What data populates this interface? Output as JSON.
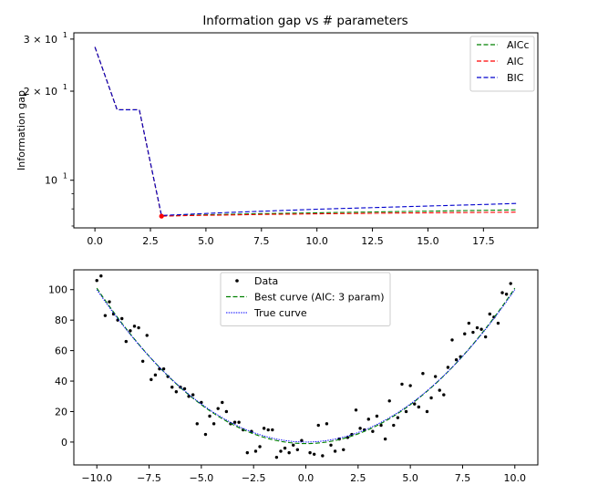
{
  "chart_data": [
    {
      "type": "line",
      "title": "Information gap vs # parameters",
      "xlabel": "",
      "ylabel": "Information gap",
      "yscale": "log",
      "xlim": [
        -0.95,
        19.95
      ],
      "ylim": [
        6.9,
        31.5
      ],
      "xticks": [
        0,
        2.5,
        5,
        7.5,
        10,
        12.5,
        15,
        17.5
      ],
      "xtick_labels": [
        "0.0",
        "2.5",
        "5.0",
        "7.5",
        "10.0",
        "12.5",
        "15.0",
        "17.5"
      ],
      "yticks": [
        10,
        20,
        30
      ],
      "ytick_labels": [
        "10",
        "2 × 10",
        "3 × 10"
      ],
      "ytick_exponent": "1",
      "legend_position": "top-right",
      "x": [
        0,
        1,
        2,
        3,
        4,
        5,
        6,
        7,
        8,
        9,
        10,
        11,
        12,
        13,
        14,
        15,
        16,
        17,
        18,
        19
      ],
      "series": [
        {
          "name": "AICc",
          "color": "#008000",
          "style": "dashed",
          "values": [
            28.2,
            17.3,
            17.3,
            7.56,
            7.61,
            7.64,
            7.67,
            7.7,
            7.72,
            7.74,
            7.76,
            7.78,
            7.8,
            7.82,
            7.84,
            7.86,
            7.88,
            7.9,
            7.92,
            7.94
          ]
        },
        {
          "name": "AIC",
          "color": "#ff0000",
          "style": "dashed",
          "values": [
            28.2,
            17.3,
            17.3,
            7.56,
            7.59,
            7.61,
            7.63,
            7.65,
            7.67,
            7.68,
            7.7,
            7.71,
            7.72,
            7.74,
            7.75,
            7.76,
            7.77,
            7.78,
            7.79,
            7.8
          ]
        },
        {
          "name": "BIC",
          "color": "#0000cc",
          "style": "dashed",
          "values": [
            28.2,
            17.3,
            17.3,
            7.6,
            7.66,
            7.72,
            7.78,
            7.83,
            7.88,
            7.93,
            7.98,
            8.02,
            8.06,
            8.1,
            8.14,
            8.18,
            8.22,
            8.26,
            8.3,
            8.35
          ]
        }
      ],
      "marker": {
        "x": 3,
        "y": 7.56,
        "color": "#ff0000"
      }
    },
    {
      "type": "scatter",
      "title": "",
      "xlabel": "",
      "ylabel": "",
      "xlim": [
        -11.1,
        11.1
      ],
      "ylim": [
        -15,
        113
      ],
      "xticks": [
        -10,
        -7.5,
        -5,
        -2.5,
        0,
        2.5,
        5,
        7.5,
        10
      ],
      "xtick_labels": [
        "−10.0",
        "−7.5",
        "−5.0",
        "−2.5",
        "0.0",
        "2.5",
        "5.0",
        "7.5",
        "10.0"
      ],
      "yticks": [
        0,
        20,
        40,
        60,
        80,
        100
      ],
      "ytick_labels": [
        "0",
        "20",
        "40",
        "60",
        "80",
        "100"
      ],
      "legend_position": "top-center",
      "series": [
        {
          "name": "Data",
          "kind": "points",
          "color": "#000000",
          "points": [
            [
              -10,
              106
            ],
            [
              -9.8,
              109
            ],
            [
              -9.6,
              83
            ],
            [
              -9.4,
              92
            ],
            [
              -9.2,
              84
            ],
            [
              -9.0,
              80
            ],
            [
              -8.8,
              81
            ],
            [
              -8.6,
              66
            ],
            [
              -8.4,
              73
            ],
            [
              -8.2,
              76
            ],
            [
              -8.0,
              75
            ],
            [
              -7.8,
              53
            ],
            [
              -7.6,
              70
            ],
            [
              -7.4,
              41
            ],
            [
              -7.2,
              44
            ],
            [
              -7.0,
              48
            ],
            [
              -6.8,
              48
            ],
            [
              -6.6,
              43
            ],
            [
              -6.4,
              36
            ],
            [
              -6.2,
              33
            ],
            [
              -6.0,
              36
            ],
            [
              -5.8,
              35
            ],
            [
              -5.6,
              30
            ],
            [
              -5.4,
              31
            ],
            [
              -5.2,
              12
            ],
            [
              -5.0,
              26
            ],
            [
              -4.8,
              5
            ],
            [
              -4.6,
              17
            ],
            [
              -4.4,
              12
            ],
            [
              -4.2,
              22
            ],
            [
              -4.0,
              26
            ],
            [
              -3.8,
              20
            ],
            [
              -3.6,
              12
            ],
            [
              -3.4,
              13
            ],
            [
              -3.2,
              13
            ],
            [
              -3.0,
              8
            ],
            [
              -2.8,
              -7
            ],
            [
              -2.6,
              7
            ],
            [
              -2.4,
              -6
            ],
            [
              -2.2,
              -3
            ],
            [
              -2.0,
              9
            ],
            [
              -1.8,
              8
            ],
            [
              -1.6,
              8
            ],
            [
              -1.4,
              -10
            ],
            [
              -1.2,
              -6
            ],
            [
              -1.0,
              -4
            ],
            [
              -0.8,
              -7
            ],
            [
              -0.6,
              -2
            ],
            [
              -0.4,
              -5
            ],
            [
              -0.2,
              1
            ],
            [
              0.2,
              -7
            ],
            [
              0.4,
              -8
            ],
            [
              0.6,
              11
            ],
            [
              0.8,
              -9
            ],
            [
              1.0,
              12
            ],
            [
              1.2,
              -2
            ],
            [
              1.4,
              -6
            ],
            [
              1.6,
              2
            ],
            [
              1.8,
              -5
            ],
            [
              2.0,
              3
            ],
            [
              2.2,
              5
            ],
            [
              2.4,
              21
            ],
            [
              2.6,
              9
            ],
            [
              2.8,
              8
            ],
            [
              3.0,
              15
            ],
            [
              3.2,
              7
            ],
            [
              3.4,
              17
            ],
            [
              3.6,
              11
            ],
            [
              3.8,
              2
            ],
            [
              4.0,
              27
            ],
            [
              4.2,
              11
            ],
            [
              4.4,
              16
            ],
            [
              4.6,
              38
            ],
            [
              4.8,
              20
            ],
            [
              5.0,
              37
            ],
            [
              5.2,
              25
            ],
            [
              5.4,
              23
            ],
            [
              5.6,
              45
            ],
            [
              5.8,
              20
            ],
            [
              6.0,
              29
            ],
            [
              6.2,
              43
            ],
            [
              6.4,
              34
            ],
            [
              6.6,
              31
            ],
            [
              6.8,
              49
            ],
            [
              7.0,
              67
            ],
            [
              7.2,
              54
            ],
            [
              7.4,
              56
            ],
            [
              7.6,
              71
            ],
            [
              7.8,
              78
            ],
            [
              8.0,
              72
            ],
            [
              8.2,
              75
            ],
            [
              8.4,
              74
            ],
            [
              8.6,
              69
            ],
            [
              8.8,
              84
            ],
            [
              9.0,
              82
            ],
            [
              9.2,
              78
            ],
            [
              9.4,
              98
            ],
            [
              9.6,
              97
            ],
            [
              9.8,
              104
            ]
          ]
        },
        {
          "name": "Best curve (AIC: 3 param)",
          "kind": "line",
          "color": "#008000",
          "style": "dashed",
          "coefficients": [
            -1.0,
            0.0,
            1.02
          ]
        },
        {
          "name": "True curve",
          "kind": "line",
          "color": "#0000ff",
          "style": "dotted",
          "coefficients": [
            0.0,
            0.0,
            1.0
          ]
        }
      ]
    }
  ]
}
